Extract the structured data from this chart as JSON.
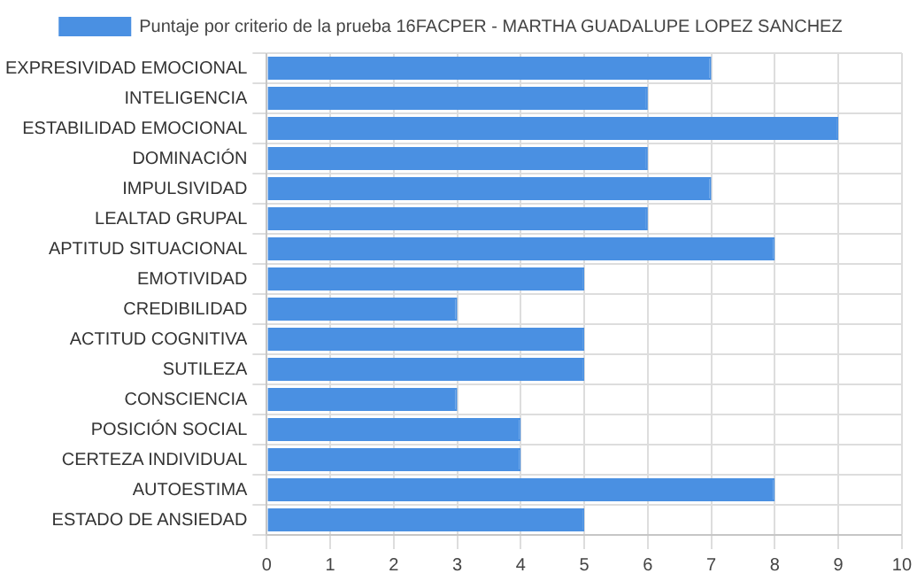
{
  "chart_data": {
    "type": "bar",
    "orientation": "horizontal",
    "categories": [
      "EXPRESIVIDAD EMOCIONAL",
      "INTELIGENCIA",
      "ESTABILIDAD EMOCIONAL",
      "DOMINACIÓN",
      "IMPULSIVIDAD",
      "LEALTAD GRUPAL",
      "APTITUD SITUACIONAL",
      "EMOTIVIDAD",
      "CREDIBILIDAD",
      "ACTITUD COGNITIVA",
      "SUTILEZA",
      "CONSCIENCIA",
      "POSICIÓN SOCIAL",
      "CERTEZA INDIVIDUAL",
      "AUTOESTIMA",
      "ESTADO DE ANSIEDAD"
    ],
    "series": [
      {
        "name": "Puntaje por criterio de la prueba 16FACPER - MARTHA GUADALUPE LOPEZ SANCHEZ",
        "color": "#4a90e2",
        "values": [
          7,
          6,
          9,
          6,
          7,
          6,
          8,
          5,
          3,
          5,
          5,
          3,
          4,
          4,
          8,
          5
        ]
      }
    ],
    "xlim": [
      0,
      10
    ],
    "xticks": [
      0,
      1,
      2,
      3,
      4,
      5,
      6,
      7,
      8,
      9,
      10
    ],
    "grid": true,
    "legend": "top"
  }
}
